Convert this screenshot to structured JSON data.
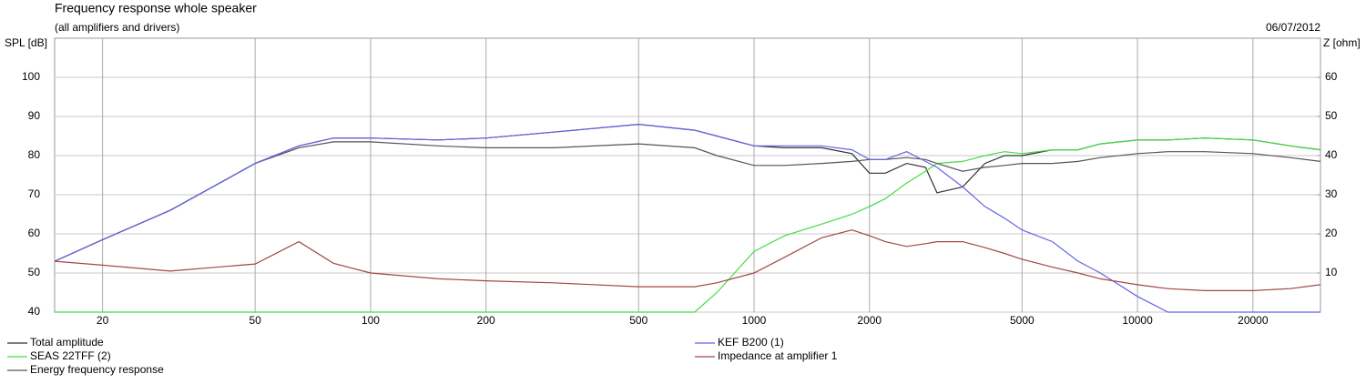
{
  "chart_data": {
    "type": "line",
    "title": "Frequency response whole speaker",
    "subtitle": "(all amplifiers and drivers)",
    "date": "06/07/2012",
    "y_label": "SPL [dB]",
    "y2_label": "Z [ohm]",
    "xscale": "log",
    "grid": true,
    "xlim": [
      15,
      30000
    ],
    "xticks": [
      20,
      50,
      100,
      200,
      500,
      1000,
      2000,
      5000,
      10000,
      20000
    ],
    "ylim": [
      40,
      110
    ],
    "yticks": [
      40,
      50,
      60,
      70,
      80,
      90,
      100
    ],
    "y2lim": [
      0,
      70
    ],
    "y2ticks": [
      10,
      20,
      30,
      40,
      50,
      60
    ],
    "x": [
      15,
      20,
      30,
      50,
      65,
      80,
      100,
      150,
      200,
      300,
      500,
      700,
      800,
      1000,
      1200,
      1500,
      1800,
      2000,
      2200,
      2500,
      2800,
      3000,
      3500,
      4000,
      4500,
      5000,
      6000,
      7000,
      8000,
      10000,
      12000,
      15000,
      20000,
      25000,
      30000
    ],
    "series": [
      {
        "name": "Total amplitude",
        "color": "#333333",
        "values": [
          53,
          58.5,
          66,
          78,
          82.5,
          84.5,
          84.5,
          84,
          84.5,
          86,
          88,
          86.5,
          85,
          82.5,
          82,
          82,
          80.5,
          75.5,
          75.5,
          78,
          77,
          70.5,
          72,
          78,
          80,
          80,
          81.5,
          81.5,
          83,
          84,
          84,
          84.5,
          84,
          82.5,
          81.5
        ]
      },
      {
        "name": "SEAS 22TFF (2)",
        "color": "#44dd44",
        "values": [
          40,
          40,
          40,
          40,
          40,
          40,
          40,
          40,
          40,
          40,
          40,
          40,
          45,
          55.5,
          59.5,
          62.5,
          65,
          67,
          69,
          73,
          76,
          78,
          78.5,
          80,
          81,
          80.5,
          81.5,
          81.5,
          83,
          84,
          84,
          84.5,
          84,
          82.5,
          81.5
        ]
      },
      {
        "name": "Energy frequency response",
        "color": "#555555",
        "values": [
          53,
          58.5,
          66,
          78,
          82,
          83.5,
          83.5,
          82.5,
          82,
          82,
          83,
          82,
          80,
          77.5,
          77.5,
          78,
          78.5,
          79,
          79,
          79.5,
          79,
          78,
          76,
          77,
          77.5,
          78,
          78,
          78.5,
          79.5,
          80.5,
          81,
          81,
          80.5,
          79.5,
          78.5
        ]
      },
      {
        "name": "KEF B200 (1)",
        "color": "#6464e6",
        "values": [
          53,
          58.5,
          66,
          78,
          82.5,
          84.5,
          84.5,
          84,
          84.5,
          86,
          88,
          86.5,
          85,
          82.5,
          82.5,
          82.5,
          81.5,
          79,
          79,
          81,
          78.5,
          77,
          72,
          67,
          64,
          61,
          58,
          53,
          50,
          44,
          40,
          40,
          40,
          40,
          40
        ]
      },
      {
        "name": "Impedance at amplifier 1",
        "color": "#a04848",
        "axis": "y2",
        "values": [
          13,
          12,
          10.5,
          12.3,
          18,
          12.5,
          10,
          8.5,
          8,
          7.5,
          6.5,
          6.5,
          7.5,
          10,
          14,
          19,
          21,
          19.5,
          18,
          16.8,
          17.5,
          18,
          18,
          16.5,
          15,
          13.5,
          11.5,
          10,
          8.5,
          7,
          6,
          5.5,
          5.5,
          6,
          7
        ]
      }
    ]
  }
}
